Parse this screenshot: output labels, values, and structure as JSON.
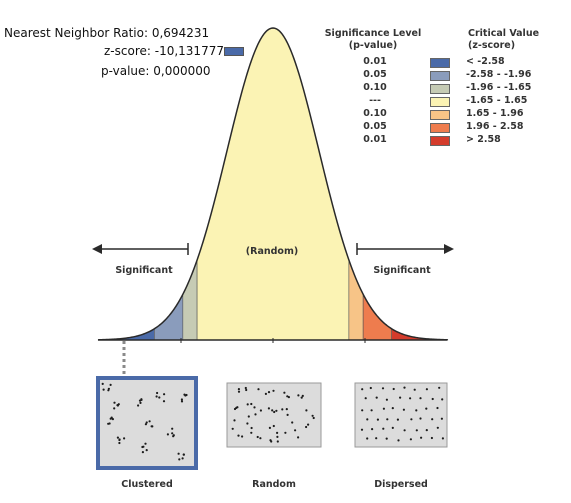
{
  "header": {
    "ratio_label": "Nearest Neighbor Ratio:",
    "ratio_value": "0,694231",
    "z_label": "z-score:",
    "z_value": "-10,131777",
    "p_label": "p-value:",
    "p_value": "0,000000",
    "z_marker_color": "#4a6aa8"
  },
  "legend": {
    "significance_title_line1": "Significance Level",
    "significance_title_line2": "(p-value)",
    "critical_title_line1": "Critical Value",
    "critical_title_line2": "(z-score)",
    "rows": [
      {
        "p": "0.01",
        "z": "< -2.58",
        "color": "#4a6aa8"
      },
      {
        "p": "0.05",
        "z": "-2.58 - -1.96",
        "color": "#8a9cbc"
      },
      {
        "p": "0.10",
        "z": "-1.96 - -1.65",
        "color": "#c6cbb4"
      },
      {
        "p": "---",
        "z": "-1.65 - 1.65",
        "color": "#fbf3b4"
      },
      {
        "p": "0.10",
        "z": "1.65 - 1.96",
        "color": "#f7c487"
      },
      {
        "p": "0.05",
        "z": "1.96 - 2.58",
        "color": "#ee7c4e"
      },
      {
        "p": "0.01",
        "z": "> 2.58",
        "color": "#d43c2c"
      }
    ]
  },
  "curve": {
    "center_label": "(Random)",
    "left_label": "Significant",
    "right_label": "Significant",
    "z_breaks": [
      -2.58,
      -1.96,
      -1.65,
      1.65,
      1.96,
      2.58
    ],
    "highlighted_pattern": "Clustered"
  },
  "patterns": [
    {
      "label": "Clustered"
    },
    {
      "label": "Random"
    },
    {
      "label": "Dispersed"
    }
  ]
}
